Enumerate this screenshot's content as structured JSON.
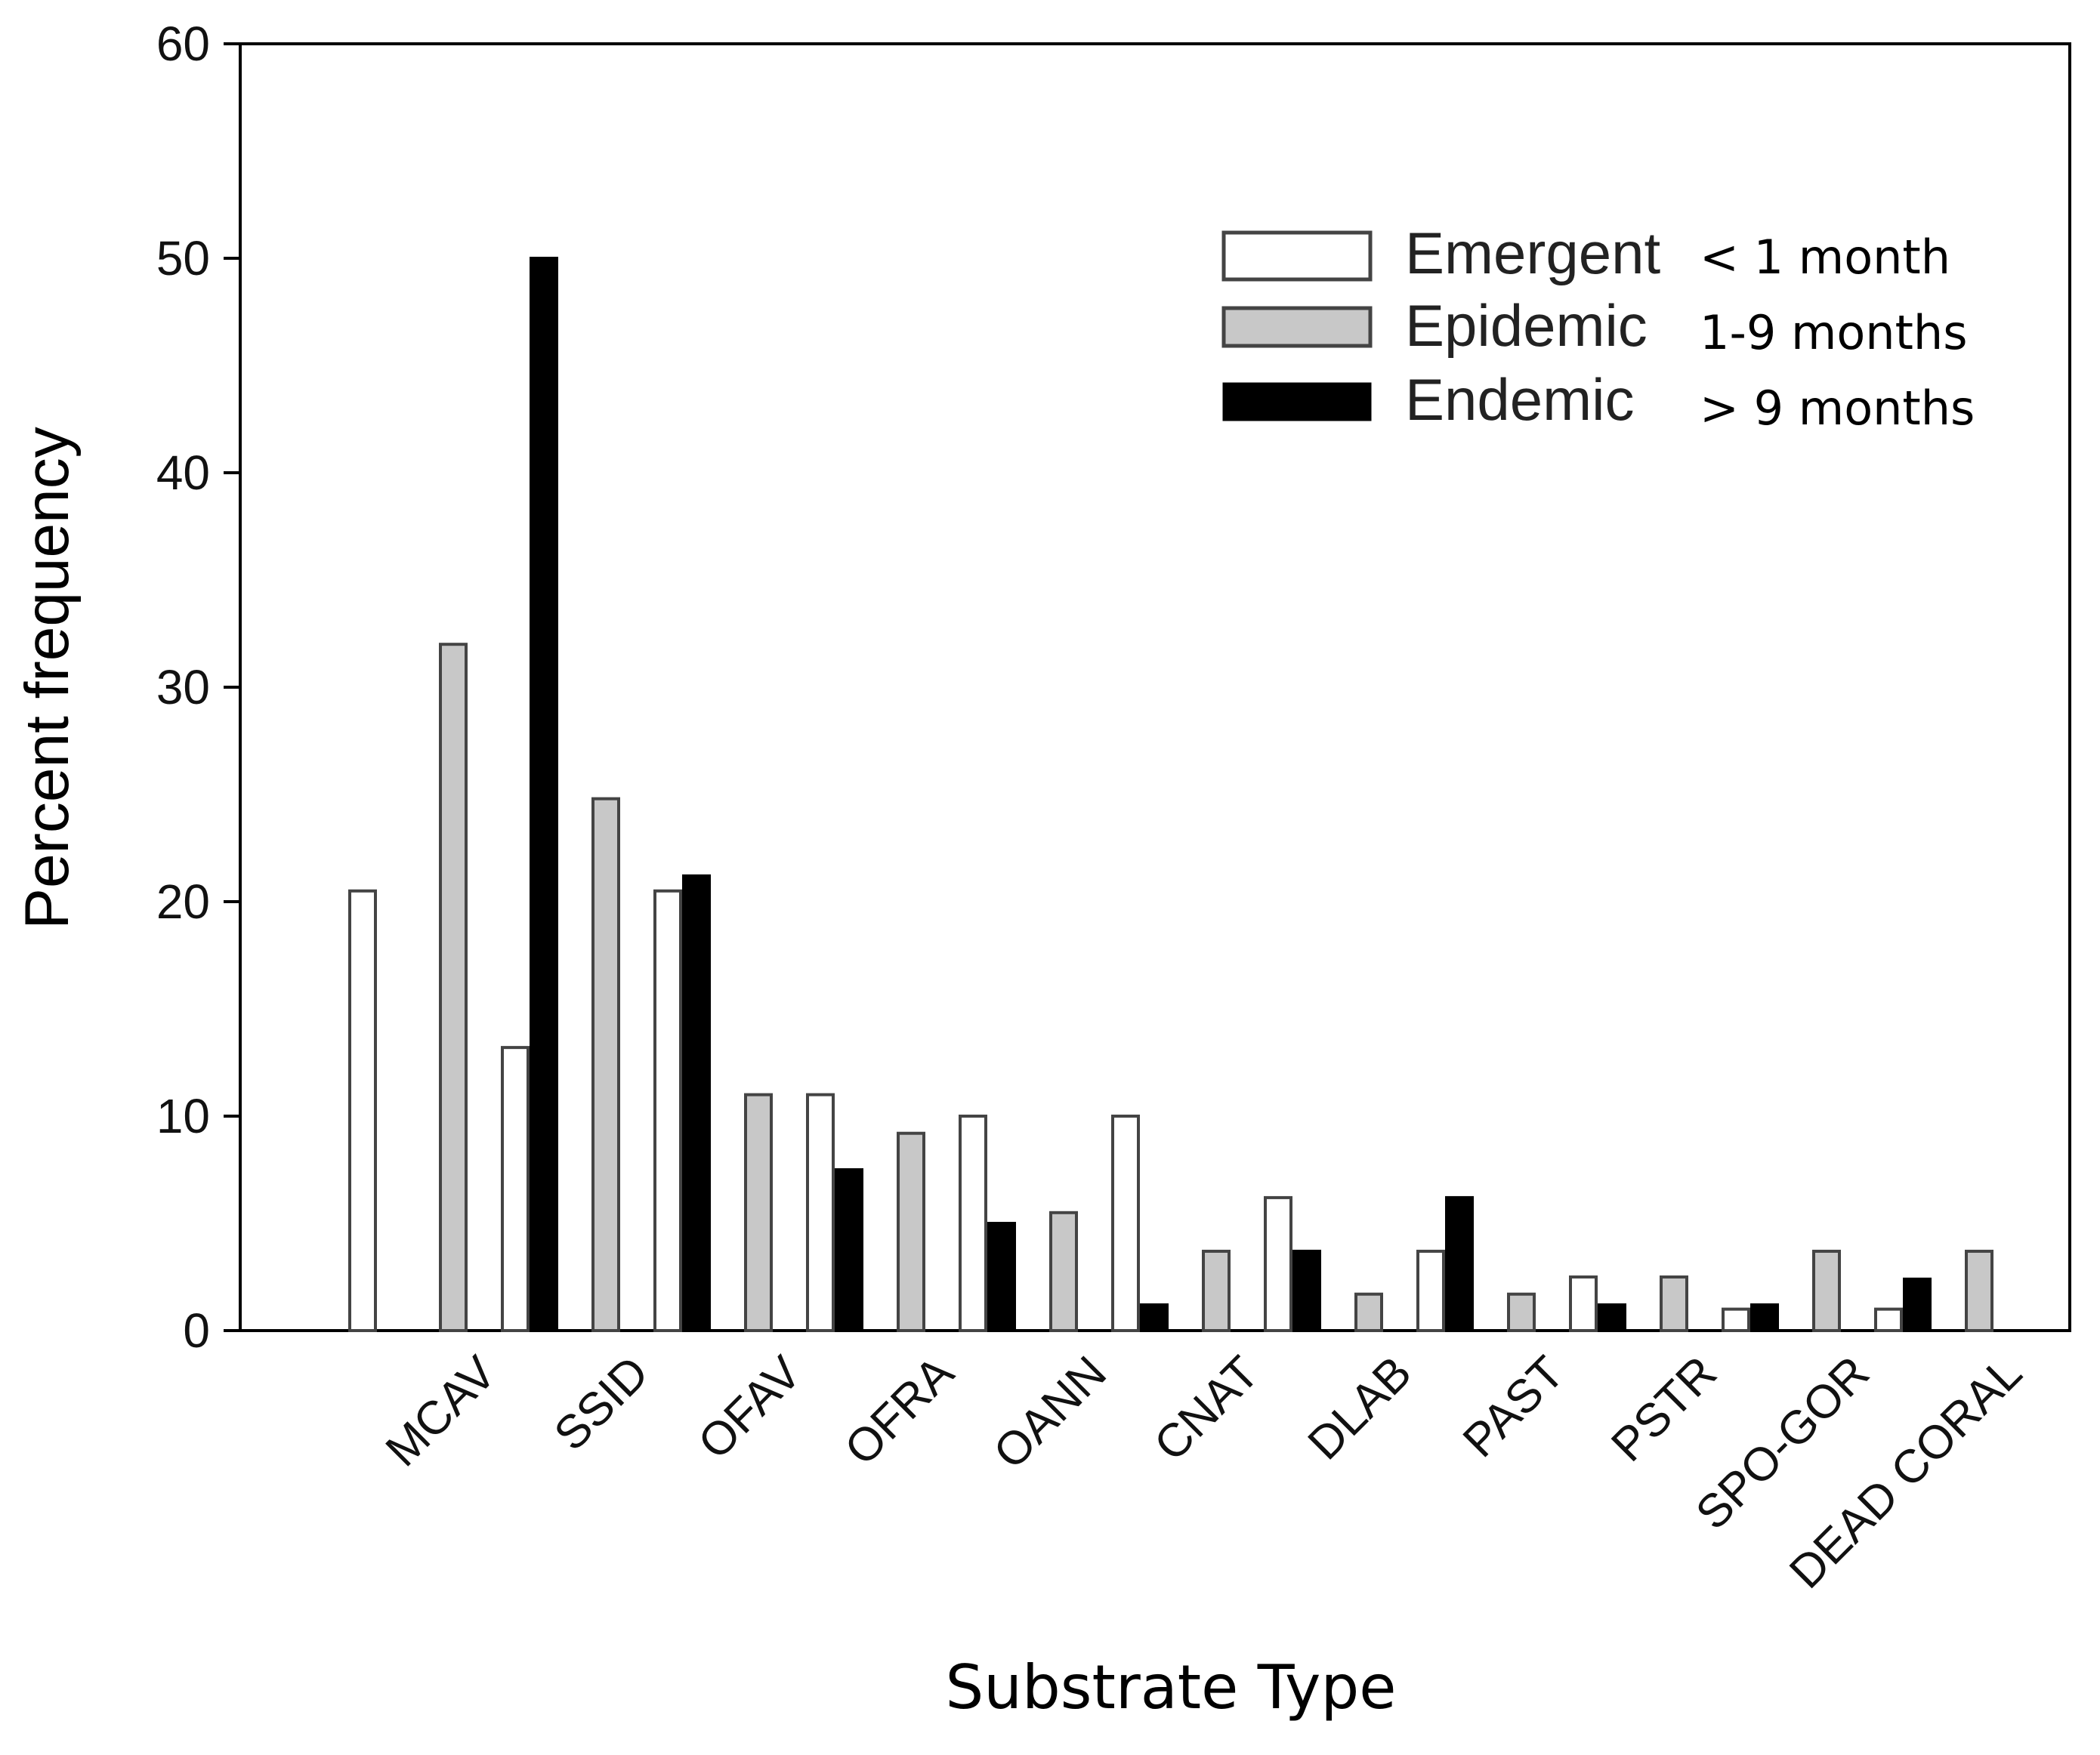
{
  "chart_data": {
    "type": "bar",
    "title": "",
    "xlabel": "Substrate Type",
    "ylabel": "Percent frequency",
    "ylim": [
      0,
      60
    ],
    "yticks": [
      0,
      10,
      20,
      30,
      40,
      50,
      60
    ],
    "ytick_labels": [
      "0",
      "10",
      "20",
      "30",
      "40",
      "50",
      "60"
    ],
    "categories": [
      "MCAV",
      "SSID",
      "OFAV",
      "OFRA",
      "OANN",
      "CNAT",
      "DLAB",
      "PAST",
      "PSTR",
      "SPO-GOR",
      "DEAD CORAL"
    ],
    "series": [
      {
        "name": "Emergent",
        "description": "< 1 month",
        "color": "#ffffff",
        "values": [
          20.5,
          13.2,
          20.5,
          11.0,
          10.0,
          10.0,
          6.2,
          3.7,
          2.5,
          1.0,
          1.0
        ]
      },
      {
        "name": "Epidemic",
        "description": "1-9 months",
        "color": "#c8c8c8",
        "values": [
          32.0,
          24.8,
          11.0,
          9.2,
          5.5,
          3.7,
          1.7,
          1.7,
          2.5,
          3.7,
          3.7
        ]
      },
      {
        "name": "Endemic",
        "description": "> 9 months",
        "color": "#000000",
        "values": [
          50.0,
          21.2,
          7.5,
          5.0,
          1.2,
          3.7,
          6.2,
          1.2,
          1.2,
          2.4,
          0.0
        ]
      }
    ],
    "legend_position": "top-right",
    "grid": false
  }
}
